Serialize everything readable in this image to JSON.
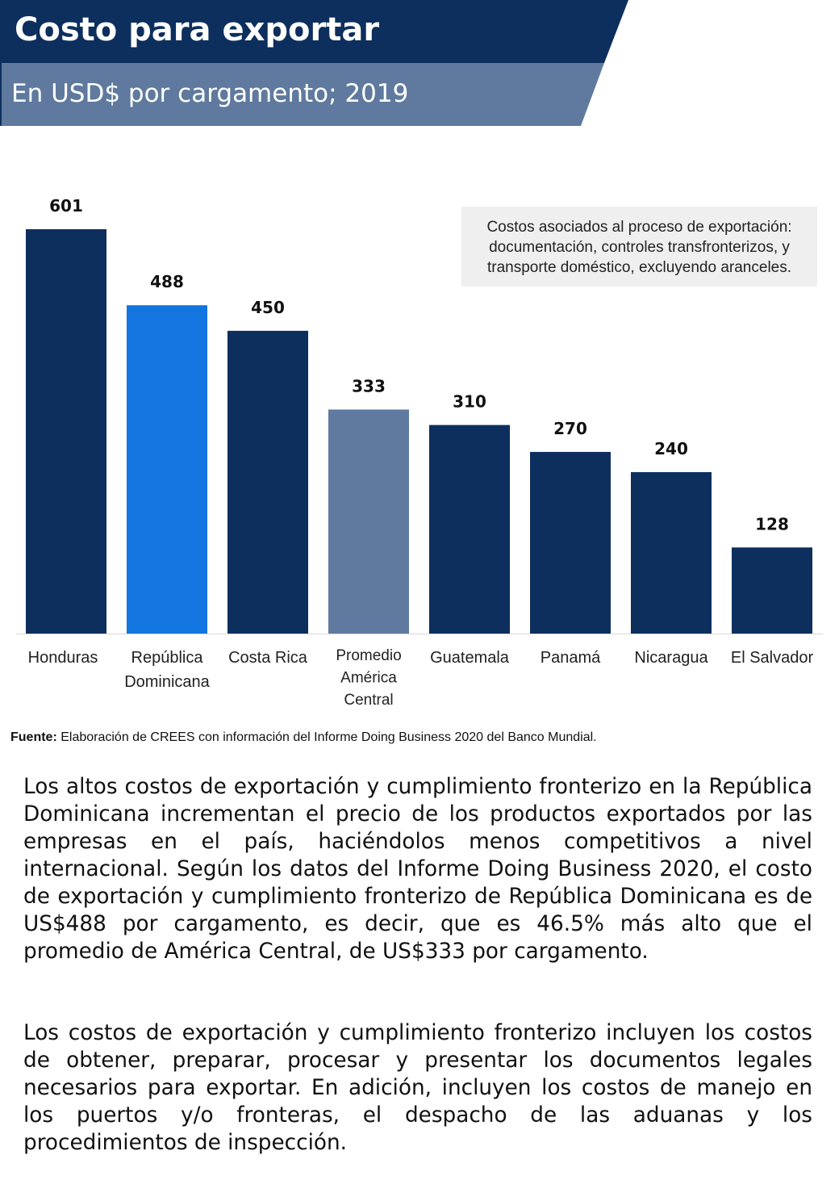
{
  "header": {
    "title": "Costo para exportar",
    "subtitle": "En USD$ por cargamento; 2019"
  },
  "colors": {
    "dark": "#0d2f5e",
    "highlight": "#1275e0",
    "average": "#5f7a9e"
  },
  "chart_data": {
    "type": "bar",
    "title": "Costo para exportar",
    "subtitle": "En USD$ por cargamento; 2019",
    "categories": [
      [
        "Honduras"
      ],
      [
        "República",
        "Dominicana"
      ],
      [
        "Costa Rica"
      ],
      [
        "Promedio",
        "América",
        "Central"
      ],
      [
        "Guatemala"
      ],
      [
        "Panamá"
      ],
      [
        "Nicaragua"
      ],
      [
        "El Salvador"
      ]
    ],
    "values": [
      601,
      488,
      450,
      333,
      310,
      270,
      240,
      128
    ],
    "bar_colors": [
      "#0d2f5e",
      "#1275e0",
      "#0d2f5e",
      "#5f7a9e",
      "#0d2f5e",
      "#0d2f5e",
      "#0d2f5e",
      "#0d2f5e"
    ],
    "ylim": [
      0,
      601
    ],
    "grid": false,
    "annotation": "Costos asociados al proceso de exportación: documentación, controles transfronterizos, y transporte doméstico, excluyendo aranceles."
  },
  "source": {
    "label": "Fuente:",
    "text": " Elaboración de CREES con información del Informe Doing Business 2020 del Banco Mundial."
  },
  "paragraphs": [
    "Los altos costos de exportación y cumplimiento fronterizo en la República Dominicana incrementan el precio de los productos exportados por las empresas en el país, haciéndolos menos competitivos a nivel internacional. Según los datos del Informe Doing Business 2020, el costo de exportación y cumplimiento fronterizo de República Dominicana es de US$488 por cargamento, es decir, que es 46.5% más alto que el promedio de América Central, de US$333 por cargamento.",
    "Los costos de exportación y cumplimiento fronterizo incluyen los costos de obtener, preparar, procesar y presentar los documentos legales necesarios para exportar. En adición, incluyen los costos de manejo en los puertos y/o fronteras, el despacho de las aduanas y los procedimientos de inspección."
  ]
}
